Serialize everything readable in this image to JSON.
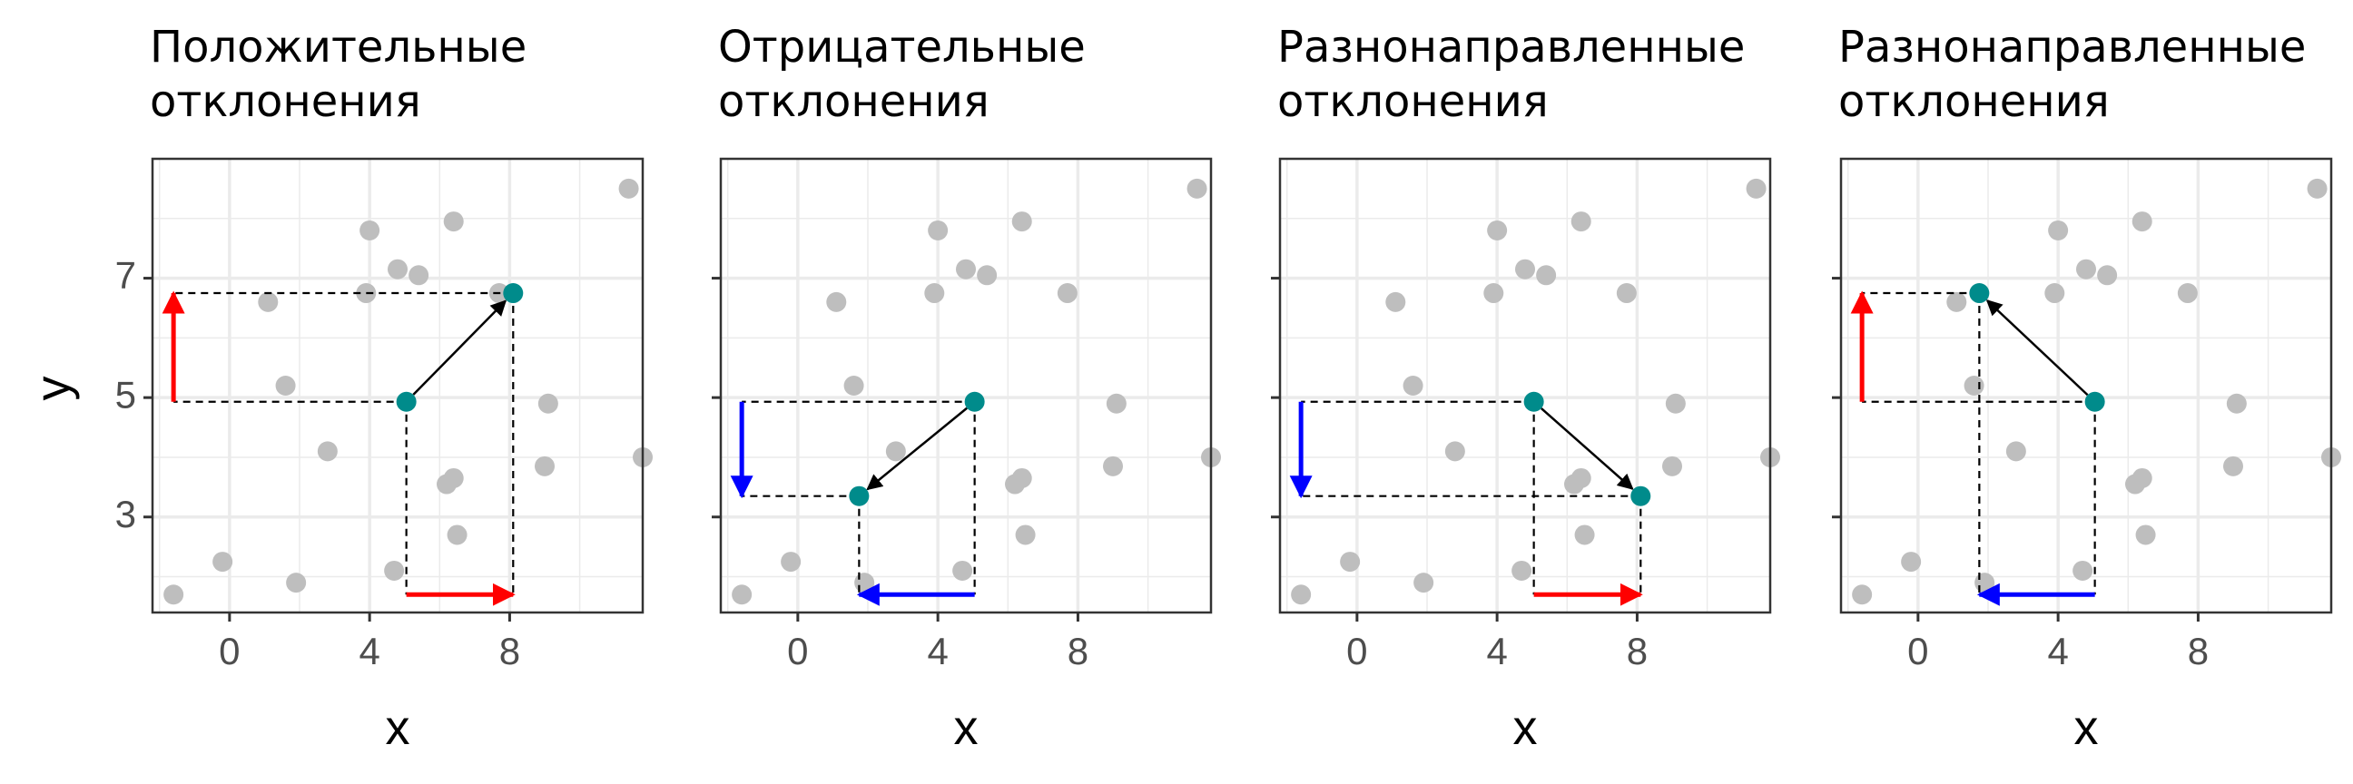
{
  "axis_titles": {
    "x": "x",
    "y": "y"
  },
  "colors": {
    "points": "#bebebe",
    "highlight": "#008b8b",
    "positive": "#ff0000",
    "negative": "#0000ff",
    "grid": "#ebebeb",
    "panel_border": "#333333"
  },
  "chart_data": [
    {
      "type": "scatter",
      "title": [
        "Положительные",
        "отклонения"
      ],
      "xlabel": "x",
      "ylabel": "y",
      "xlim": [
        -2.2,
        11.8
      ],
      "ylim": [
        1.4,
        9.0
      ],
      "xticks": [
        0,
        4,
        8
      ],
      "yticks": [
        3,
        5,
        7
      ],
      "y_tick_labels_shown": true,
      "points": [
        [
          -1.6,
          1.7
        ],
        [
          -0.2,
          2.25
        ],
        [
          1.1,
          6.6
        ],
        [
          1.6,
          5.2
        ],
        [
          1.9,
          1.9
        ],
        [
          2.8,
          4.1
        ],
        [
          3.9,
          6.75
        ],
        [
          4.0,
          7.8
        ],
        [
          4.7,
          2.1
        ],
        [
          4.8,
          7.15
        ],
        [
          5.4,
          7.05
        ],
        [
          6.2,
          3.55
        ],
        [
          6.4,
          3.65
        ],
        [
          6.4,
          7.95
        ],
        [
          6.5,
          2.7
        ],
        [
          7.7,
          6.75
        ],
        [
          9.0,
          3.85
        ],
        [
          9.1,
          4.9
        ],
        [
          11.4,
          8.5
        ],
        [
          11.8,
          4.0
        ]
      ],
      "highlight": [
        [
          5.05,
          4.93
        ],
        [
          8.1,
          6.75
        ]
      ],
      "arrow_from": 0,
      "arrow_to": 1,
      "dx_color": "positive",
      "dy_color": "positive"
    },
    {
      "type": "scatter",
      "title": [
        "Отрицательные",
        "отклонения"
      ],
      "xlabel": "x",
      "ylabel": "",
      "xlim": [
        -2.2,
        11.8
      ],
      "ylim": [
        1.4,
        9.0
      ],
      "xticks": [
        0,
        4,
        8
      ],
      "yticks": [
        3,
        5,
        7
      ],
      "y_tick_labels_shown": false,
      "points": [
        [
          -1.6,
          1.7
        ],
        [
          -0.2,
          2.25
        ],
        [
          1.1,
          6.6
        ],
        [
          1.6,
          5.2
        ],
        [
          1.9,
          1.9
        ],
        [
          2.8,
          4.1
        ],
        [
          3.9,
          6.75
        ],
        [
          4.0,
          7.8
        ],
        [
          4.7,
          2.1
        ],
        [
          4.8,
          7.15
        ],
        [
          5.4,
          7.05
        ],
        [
          6.2,
          3.55
        ],
        [
          6.4,
          3.65
        ],
        [
          6.4,
          7.95
        ],
        [
          6.5,
          2.7
        ],
        [
          7.7,
          6.75
        ],
        [
          9.0,
          3.85
        ],
        [
          9.1,
          4.9
        ],
        [
          11.4,
          8.5
        ],
        [
          11.8,
          4.0
        ]
      ],
      "highlight": [
        [
          5.05,
          4.93
        ],
        [
          1.75,
          3.35
        ]
      ],
      "arrow_from": 0,
      "arrow_to": 1,
      "dx_color": "negative",
      "dy_color": "negative"
    },
    {
      "type": "scatter",
      "title": [
        "Разнонаправленные",
        "отклонения"
      ],
      "xlabel": "x",
      "ylabel": "",
      "xlim": [
        -2.2,
        11.8
      ],
      "ylim": [
        1.4,
        9.0
      ],
      "xticks": [
        0,
        4,
        8
      ],
      "yticks": [
        3,
        5,
        7
      ],
      "y_tick_labels_shown": false,
      "points": [
        [
          -1.6,
          1.7
        ],
        [
          -0.2,
          2.25
        ],
        [
          1.1,
          6.6
        ],
        [
          1.6,
          5.2
        ],
        [
          1.9,
          1.9
        ],
        [
          2.8,
          4.1
        ],
        [
          3.9,
          6.75
        ],
        [
          4.0,
          7.8
        ],
        [
          4.7,
          2.1
        ],
        [
          4.8,
          7.15
        ],
        [
          5.4,
          7.05
        ],
        [
          6.2,
          3.55
        ],
        [
          6.4,
          3.65
        ],
        [
          6.4,
          7.95
        ],
        [
          6.5,
          2.7
        ],
        [
          7.7,
          6.75
        ],
        [
          9.0,
          3.85
        ],
        [
          9.1,
          4.9
        ],
        [
          11.4,
          8.5
        ],
        [
          11.8,
          4.0
        ]
      ],
      "highlight": [
        [
          5.05,
          4.93
        ],
        [
          8.1,
          3.35
        ]
      ],
      "arrow_from": 0,
      "arrow_to": 1,
      "dx_color": "positive",
      "dy_color": "negative"
    },
    {
      "type": "scatter",
      "title": [
        "Разнонаправленные",
        "отклонения"
      ],
      "xlabel": "x",
      "ylabel": "",
      "xlim": [
        -2.2,
        11.8
      ],
      "ylim": [
        1.4,
        9.0
      ],
      "xticks": [
        0,
        4,
        8
      ],
      "yticks": [
        3,
        5,
        7
      ],
      "y_tick_labels_shown": false,
      "points": [
        [
          -1.6,
          1.7
        ],
        [
          -0.2,
          2.25
        ],
        [
          1.1,
          6.6
        ],
        [
          1.6,
          5.2
        ],
        [
          1.9,
          1.9
        ],
        [
          2.8,
          4.1
        ],
        [
          3.9,
          6.75
        ],
        [
          4.0,
          7.8
        ],
        [
          4.7,
          2.1
        ],
        [
          4.8,
          7.15
        ],
        [
          5.4,
          7.05
        ],
        [
          6.2,
          3.55
        ],
        [
          6.4,
          3.65
        ],
        [
          6.4,
          7.95
        ],
        [
          6.5,
          2.7
        ],
        [
          7.7,
          6.75
        ],
        [
          9.0,
          3.85
        ],
        [
          9.1,
          4.9
        ],
        [
          11.4,
          8.5
        ],
        [
          11.8,
          4.0
        ]
      ],
      "highlight": [
        [
          5.05,
          4.93
        ],
        [
          1.75,
          6.75
        ]
      ],
      "arrow_from": 0,
      "arrow_to": 1,
      "dx_color": "negative",
      "dy_color": "positive"
    }
  ]
}
